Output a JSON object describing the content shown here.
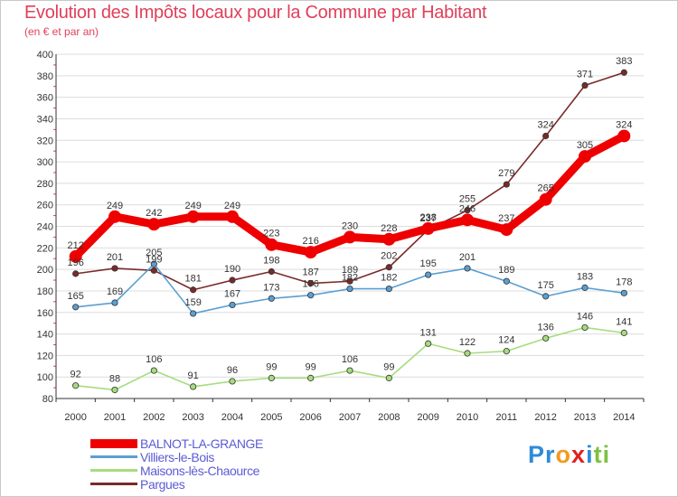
{
  "title": "Evolution des Impôts locaux pour la Commune par Habitant",
  "subtitle": "(en € et par an)",
  "logo": {
    "text": "Proxiti",
    "letters": [
      "P",
      "r",
      "o",
      "x",
      "i",
      "t",
      "i"
    ],
    "colors": [
      "#2f8ad8",
      "#2f8ad8",
      "#f39a1e",
      "#e0201f",
      "#2f8ad8",
      "#7cc242",
      "#7cc242"
    ]
  },
  "chart_data": {
    "type": "line",
    "title": "Evolution des Impôts locaux pour la Commune par Habitant",
    "subtitle": "(en € et par an)",
    "xlabel": "",
    "ylabel": "",
    "categories": [
      "2000",
      "2001",
      "2002",
      "2003",
      "2004",
      "2005",
      "2006",
      "2007",
      "2008",
      "2009",
      "2010",
      "2011",
      "2012",
      "2013",
      "2014"
    ],
    "ylim": [
      80,
      400
    ],
    "yticks": [
      80,
      100,
      120,
      140,
      160,
      180,
      200,
      220,
      240,
      260,
      280,
      300,
      320,
      340,
      360,
      380,
      400
    ],
    "grid": "horizontal",
    "legend_position": "bottom-left",
    "series": [
      {
        "name": "Pargues",
        "color": "#7a2a2a",
        "values": [
          196,
          201,
          199,
          181,
          190,
          198,
          187,
          189,
          202,
          237,
          255,
          279,
          324,
          371,
          383
        ]
      },
      {
        "name": "Villiers-le-Bois",
        "color": "#5b9fd2",
        "values": [
          165,
          169,
          205,
          159,
          167,
          173,
          176,
          182,
          182,
          195,
          201,
          189,
          175,
          183,
          178
        ]
      },
      {
        "name": "Maisons-lès-Chaource",
        "color": "#a6dc7e",
        "values": [
          92,
          88,
          106,
          91,
          96,
          99,
          99,
          106,
          99,
          131,
          122,
          124,
          136,
          146,
          141
        ]
      },
      {
        "name": "BALNOT-LA-GRANGE",
        "color": "#ee0000",
        "values": [
          212,
          249,
          242,
          249,
          249,
          223,
          216,
          230,
          228,
          238,
          246,
          237,
          265,
          305,
          324
        ]
      }
    ],
    "legend_order": [
      "BALNOT-LA-GRANGE",
      "Villiers-le-Bois",
      "Maisons-lès-Chaource",
      "Pargues"
    ]
  }
}
